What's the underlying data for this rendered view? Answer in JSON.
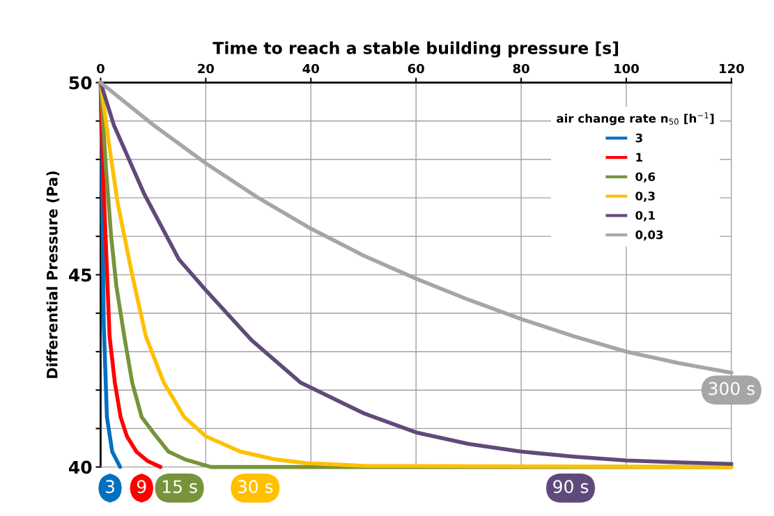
{
  "chart_data": {
    "type": "line",
    "xlabel": "Time to reach a stable building pressure [s]",
    "ylabel": "Differential Pressure (Pa)",
    "legend_title": "air change rate n$_{50}$ [h$^{−1}$]",
    "xlim": [
      0,
      120
    ],
    "xticks": [
      0,
      20,
      40,
      60,
      80,
      100,
      120
    ],
    "ylim": [
      40,
      50
    ],
    "yticks": [
      40,
      {
        "value": 41,
        "label": null
      },
      {
        "value": 42,
        "label": null
      },
      {
        "value": 43,
        "label": null
      },
      {
        "value": 44,
        "label": null
      },
      45,
      {
        "value": 46,
        "label": null
      },
      {
        "value": 47,
        "label": null
      },
      {
        "value": 48,
        "label": null
      },
      {
        "value": 49,
        "label": null
      },
      50
    ],
    "grid": true,
    "legend": "top right",
    "marker": "none",
    "line_style": "solid",
    "series": [
      {
        "name": "3",
        "color": "#0070c0",
        "x": [
          0,
          0.2,
          0.6,
          1.2,
          2.2,
          3.7
        ],
        "values": [
          50,
          48.3,
          43.7,
          41.3,
          40.4,
          40
        ]
      },
      {
        "name": "1",
        "color": "#ff0000",
        "x": [
          0,
          0.5,
          1,
          1.7,
          2.7,
          3.8,
          5,
          6.8,
          9,
          11.4
        ],
        "values": [
          50,
          47.5,
          45.8,
          43.4,
          42.2,
          41.3,
          40.8,
          40.4,
          40.15,
          40
        ]
      },
      {
        "name": "0,6",
        "color": "#77933c",
        "x": [
          0,
          1,
          2,
          3,
          4.5,
          6,
          7.8,
          10,
          12.9,
          16,
          21,
          120
        ],
        "values": [
          50,
          47.8,
          46.0,
          44.7,
          43.4,
          42.2,
          41.3,
          40.9,
          40.4,
          40.2,
          40,
          40
        ]
      },
      {
        "name": "0,3",
        "color": "#ffc000",
        "x": [
          0,
          1.5,
          3.2,
          6,
          8.6,
          12,
          15.9,
          20,
          26.6,
          33,
          39,
          50,
          120
        ],
        "values": [
          50,
          48.5,
          46.9,
          45.0,
          43.4,
          42.2,
          41.3,
          40.8,
          40.4,
          40.2,
          40.1,
          40.03,
          40
        ]
      },
      {
        "name": "0,1",
        "color": "#604a7b",
        "x": [
          0,
          2.5,
          8.3,
          14.9,
          20,
          28.7,
          38,
          50,
          60,
          70,
          80,
          90,
          100,
          110,
          120
        ],
        "values": [
          50,
          48.9,
          47.1,
          45.4,
          44.6,
          43.3,
          42.2,
          41.4,
          40.9,
          40.6,
          40.4,
          40.27,
          40.17,
          40.12,
          40.08
        ]
      },
      {
        "name": "0,03",
        "color": "#a6a6a6",
        "x": [
          0,
          10,
          20,
          30,
          40,
          50,
          60,
          70,
          80,
          90,
          100,
          110,
          120
        ],
        "values": [
          50,
          48.9,
          47.9,
          47.0,
          46.2,
          45.5,
          44.9,
          44.35,
          43.85,
          43.4,
          43.0,
          42.7,
          42.45
        ]
      }
    ],
    "annotations": [
      "3",
      "9",
      "15 s",
      "30 s",
      "90 s",
      "300 s"
    ]
  }
}
